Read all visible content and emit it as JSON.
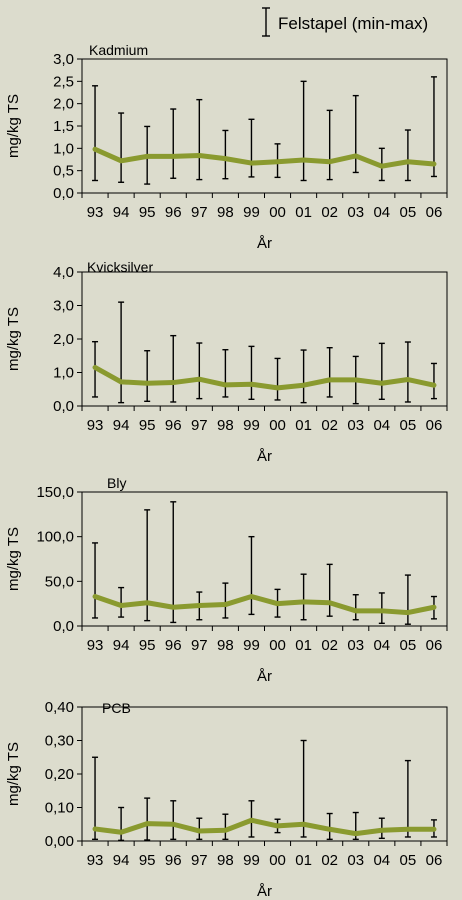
{
  "legend": {
    "label": "Felstapel (min-max)"
  },
  "chart_data": [
    {
      "type": "line",
      "title": "Kadmium",
      "ylabel": "mg/kg TS",
      "xlabel": "År",
      "ylim": [
        0,
        3
      ],
      "yticks": [
        "0,0",
        "0,5",
        "1,0",
        "1,5",
        "2,0",
        "2,5",
        "3,0"
      ],
      "categories": [
        "93",
        "94",
        "95",
        "96",
        "97",
        "98",
        "99",
        "00",
        "01",
        "02",
        "03",
        "04",
        "05",
        "06"
      ],
      "values": [
        0.98,
        0.72,
        0.82,
        0.82,
        0.84,
        0.77,
        0.67,
        0.7,
        0.74,
        0.7,
        0.83,
        0.6,
        0.7,
        0.65
      ],
      "min": [
        0.28,
        0.24,
        0.2,
        0.33,
        0.3,
        0.32,
        0.36,
        0.35,
        0.28,
        0.3,
        0.46,
        0.28,
        0.28,
        0.37
      ],
      "max": [
        2.4,
        1.79,
        1.49,
        1.88,
        2.09,
        1.4,
        1.65,
        1.1,
        2.5,
        1.85,
        2.18,
        1.0,
        1.41,
        2.6
      ],
      "error_bars": "min-max",
      "line_color": "#8a9a2f"
    },
    {
      "type": "line",
      "title": "Kvicksilver",
      "ylabel": "mg/kg TS",
      "xlabel": "År",
      "ylim": [
        0,
        4
      ],
      "yticks": [
        "0,0",
        "1,0",
        "2,0",
        "3,0",
        "4,0"
      ],
      "categories": [
        "93",
        "94",
        "95",
        "96",
        "97",
        "98",
        "99",
        "00",
        "01",
        "02",
        "03",
        "04",
        "05",
        "06"
      ],
      "values": [
        1.15,
        0.72,
        0.68,
        0.7,
        0.8,
        0.63,
        0.65,
        0.54,
        0.62,
        0.78,
        0.78,
        0.68,
        0.79,
        0.62
      ],
      "min": [
        0.27,
        0.1,
        0.14,
        0.12,
        0.22,
        0.27,
        0.2,
        0.18,
        0.1,
        0.27,
        0.07,
        0.2,
        0.12,
        0.22
      ],
      "max": [
        1.92,
        3.1,
        1.65,
        2.1,
        1.88,
        1.68,
        1.78,
        1.42,
        1.67,
        1.74,
        1.48,
        1.87,
        1.91,
        1.27
      ],
      "error_bars": "min-max",
      "line_color": "#8a9a2f"
    },
    {
      "type": "line",
      "title": "Bly",
      "ylabel": "mg/kg TS",
      "xlabel": "År",
      "ylim": [
        0,
        150
      ],
      "yticks": [
        "0,0",
        "50,0",
        "100,0",
        "150,0"
      ],
      "categories": [
        "93",
        "94",
        "95",
        "96",
        "97",
        "98",
        "99",
        "00",
        "01",
        "02",
        "03",
        "04",
        "05",
        "06"
      ],
      "values": [
        33,
        23,
        26,
        21,
        23,
        24,
        33,
        25,
        27,
        26,
        17,
        17,
        15,
        21
      ],
      "min": [
        9,
        10,
        6,
        4,
        7,
        9,
        13,
        10,
        7,
        11,
        7,
        3,
        2,
        8
      ],
      "max": [
        93,
        43,
        130,
        139,
        38,
        48,
        100,
        41,
        58,
        69,
        35,
        37,
        57,
        33
      ],
      "error_bars": "min-max",
      "line_color": "#8a9a2f"
    },
    {
      "type": "line",
      "title": "PCB",
      "ylabel": "mg/kg TS",
      "xlabel": "År",
      "ylim": [
        0,
        0.4
      ],
      "yticks": [
        "0,00",
        "0,10",
        "0,20",
        "0,30",
        "0,40"
      ],
      "categories": [
        "93",
        "94",
        "95",
        "96",
        "97",
        "98",
        "99",
        "00",
        "01",
        "02",
        "03",
        "04",
        "05",
        "06"
      ],
      "values": [
        0.036,
        0.026,
        0.052,
        0.05,
        0.03,
        0.032,
        0.062,
        0.045,
        0.05,
        0.035,
        0.022,
        0.032,
        0.035,
        0.035
      ],
      "min": [
        0.005,
        0.002,
        0.003,
        0.005,
        0.005,
        0.005,
        0.012,
        0.025,
        0.012,
        0.005,
        0.005,
        0.008,
        0.012,
        0.012
      ],
      "max": [
        0.25,
        0.1,
        0.128,
        0.12,
        0.068,
        0.08,
        0.12,
        0.065,
        0.3,
        0.082,
        0.085,
        0.068,
        0.24,
        0.063
      ],
      "error_bars": "min-max",
      "line_color": "#8a9a2f"
    }
  ]
}
